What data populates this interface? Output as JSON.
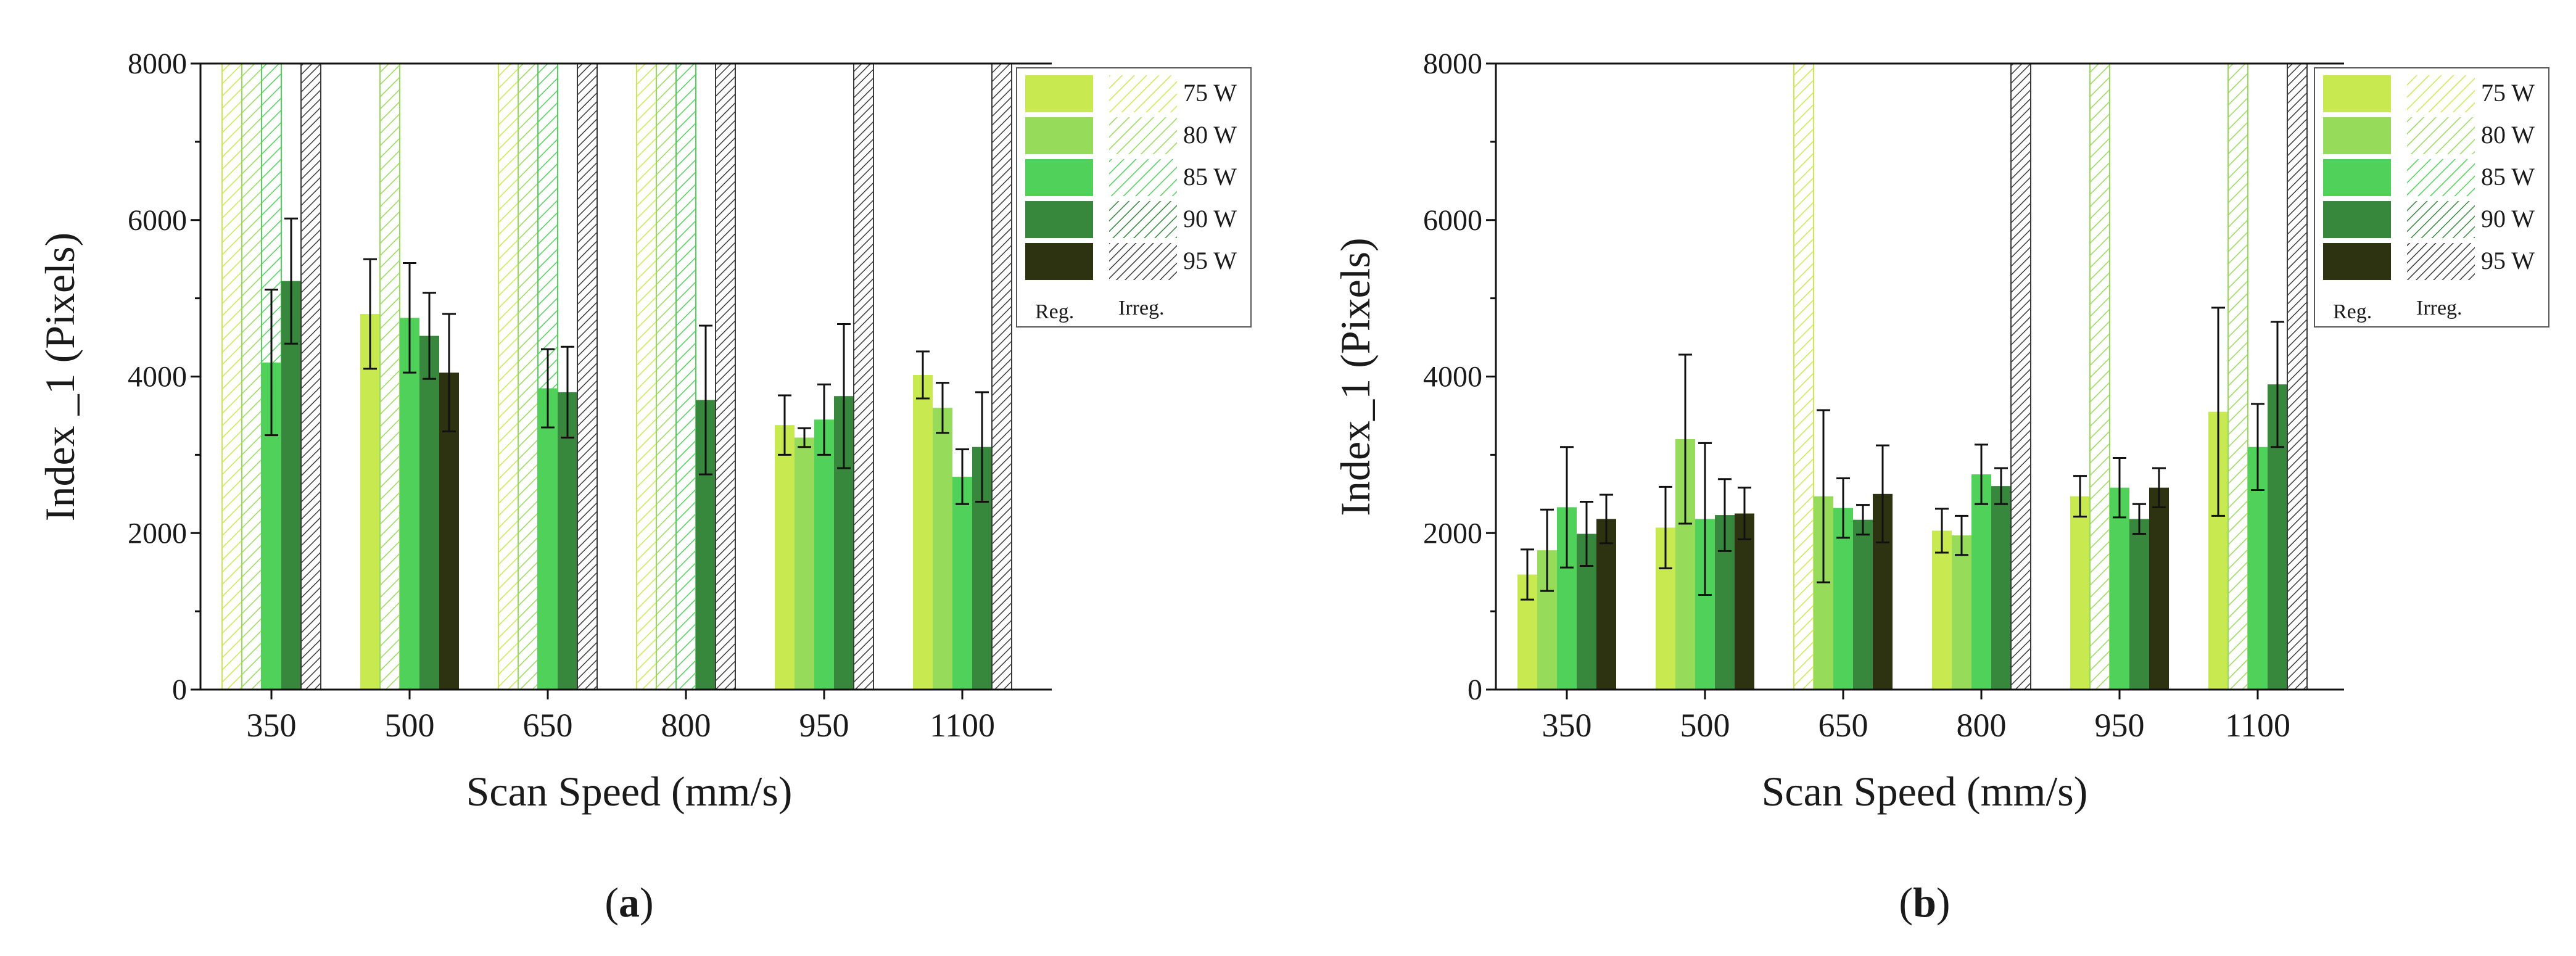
{
  "colors": {
    "W75": "#c8ea50",
    "W80": "#96dc5a",
    "W85": "#50d25a",
    "W90": "#37873c",
    "W95": "#2d3210",
    "axis": "#1a1a1a"
  },
  "legend_labels": {
    "reg": "Reg.",
    "irreg": "Irreg."
  },
  "chart_data": [
    {
      "type": "bar",
      "panel_label_open": "(",
      "panel_letter": "a",
      "panel_label_close": ")",
      "ylabel": "Index _1 (Pixels)",
      "xlabel": "Scan Speed (mm/s)",
      "ylim": [
        0,
        8000
      ],
      "yticks": [
        "0",
        "2000",
        "4000",
        "6000",
        "8000"
      ],
      "categories": [
        "350",
        "500",
        "650",
        "800",
        "950",
        "1100"
      ],
      "legend": {
        "placement": "top-right"
      },
      "series": [
        {
          "name": "75 W",
          "color_key": "W75",
          "values": [
            null,
            4800,
            null,
            null,
            3380,
            4020
          ],
          "errors": [
            null,
            700,
            null,
            null,
            380,
            300
          ],
          "irregular": [
            true,
            false,
            true,
            true,
            false,
            false
          ]
        },
        {
          "name": "80 W",
          "color_key": "W80",
          "values": [
            null,
            null,
            null,
            null,
            3220,
            3600
          ],
          "errors": [
            null,
            null,
            null,
            null,
            120,
            320
          ],
          "irregular": [
            true,
            true,
            true,
            true,
            false,
            false
          ]
        },
        {
          "name": "85 W",
          "color_key": "W85",
          "values": [
            4180,
            4750,
            3850,
            null,
            3450,
            2720
          ],
          "errors": [
            930,
            700,
            500,
            null,
            450,
            350
          ],
          "irregular": [
            true,
            false,
            true,
            true,
            false,
            false
          ]
        },
        {
          "name": "90 W",
          "color_key": "W90",
          "values": [
            5220,
            4520,
            3800,
            3700,
            3750,
            3100
          ],
          "errors": [
            800,
            550,
            580,
            950,
            920,
            700
          ],
          "irregular": [
            false,
            false,
            false,
            false,
            false,
            false
          ]
        },
        {
          "name": "95 W",
          "color_key": "W95",
          "values": [
            null,
            4050,
            null,
            null,
            null,
            null
          ],
          "errors": [
            null,
            750,
            null,
            null,
            null,
            null
          ],
          "irregular": [
            true,
            false,
            true,
            true,
            true,
            true
          ]
        }
      ]
    },
    {
      "type": "bar",
      "panel_label_open": "(",
      "panel_letter": "b",
      "panel_label_close": ")",
      "ylabel": "Index_1 (Pixels)",
      "xlabel": "Scan Speed (mm/s)",
      "ylim": [
        0,
        8000
      ],
      "yticks": [
        "0",
        "2000",
        "4000",
        "6000",
        "8000"
      ],
      "categories": [
        "350",
        "500",
        "650",
        "800",
        "950",
        "1100"
      ],
      "legend": {
        "placement": "top-right"
      },
      "series": [
        {
          "name": "75 W",
          "color_key": "W75",
          "values": [
            1470,
            2070,
            null,
            2030,
            2470,
            3550
          ],
          "errors": [
            320,
            520,
            null,
            280,
            260,
            1330
          ],
          "irregular": [
            false,
            false,
            true,
            false,
            false,
            false
          ]
        },
        {
          "name": "80 W",
          "color_key": "W80",
          "values": [
            1780,
            3200,
            2470,
            1970,
            null,
            null
          ],
          "errors": [
            520,
            1080,
            1100,
            250,
            null,
            null
          ],
          "irregular": [
            false,
            false,
            false,
            false,
            true,
            true
          ]
        },
        {
          "name": "85 W",
          "color_key": "W85",
          "values": [
            2330,
            2180,
            2320,
            2750,
            2580,
            3100
          ],
          "errors": [
            770,
            970,
            380,
            380,
            380,
            550
          ],
          "irregular": [
            false,
            false,
            false,
            false,
            false,
            false
          ]
        },
        {
          "name": "90 W",
          "color_key": "W90",
          "values": [
            1990,
            2230,
            2170,
            2600,
            2180,
            3900
          ],
          "errors": [
            410,
            460,
            190,
            230,
            190,
            800
          ],
          "irregular": [
            false,
            false,
            false,
            false,
            false,
            false
          ]
        },
        {
          "name": "95 W",
          "color_key": "W95",
          "values": [
            2180,
            2250,
            2500,
            null,
            2580,
            null
          ],
          "errors": [
            310,
            330,
            620,
            null,
            250,
            null
          ],
          "irregular": [
            false,
            false,
            false,
            true,
            false,
            true
          ]
        }
      ]
    }
  ]
}
